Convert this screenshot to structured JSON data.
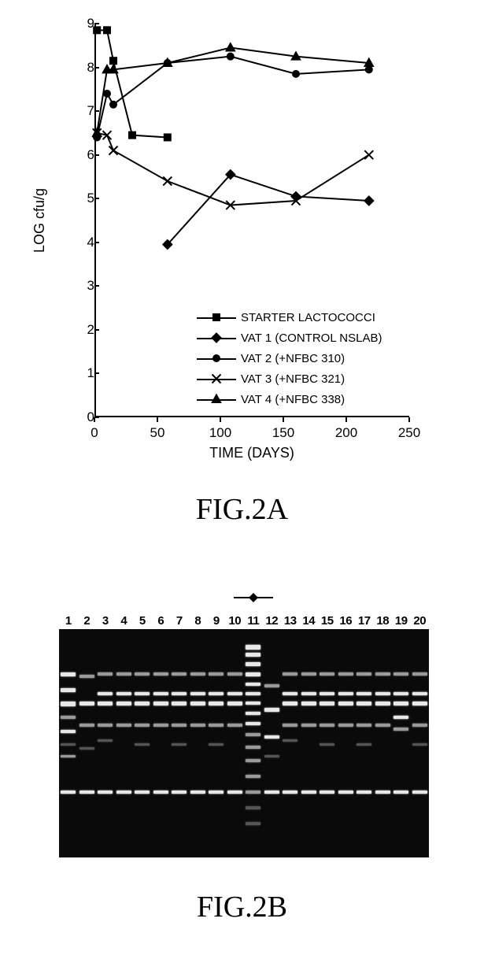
{
  "chart": {
    "type": "line",
    "xlabel": "TIME (DAYS)",
    "ylabel": "LOG cfu/g",
    "label_fontsize": 18,
    "tick_fontsize": 17,
    "xlim": [
      0,
      250
    ],
    "ylim": [
      0,
      9
    ],
    "xticks": [
      0,
      50,
      100,
      150,
      200,
      250
    ],
    "yticks": [
      0,
      1,
      2,
      3,
      4,
      5,
      6,
      7,
      8,
      9
    ],
    "background_color": "#ffffff",
    "axis_color": "#000000",
    "line_color": "#000000",
    "line_width": 2,
    "series": [
      {
        "label": "STARTER LACTOCOCCI",
        "marker": "square-filled",
        "marker_size": 10,
        "x": [
          2,
          10,
          15,
          30,
          58
        ],
        "y": [
          8.85,
          8.85,
          8.15,
          6.45,
          6.4
        ]
      },
      {
        "label": "VAT 1 (CONTROL NSLAB)",
        "marker": "diamond-filled",
        "marker_size": 11,
        "x": [
          58,
          108,
          160,
          218
        ],
        "y": [
          3.95,
          5.55,
          5.05,
          4.95
        ]
      },
      {
        "label": "VAT 2 (+NFBC 310)",
        "marker": "circle-filled",
        "marker_size": 10,
        "x": [
          2,
          10,
          15,
          58,
          108,
          160,
          218
        ],
        "y": [
          6.4,
          7.4,
          7.15,
          8.1,
          8.25,
          7.85,
          7.95
        ]
      },
      {
        "label": "VAT 3 (+NFBC 321)",
        "marker": "x",
        "marker_size": 11,
        "x": [
          2,
          10,
          15,
          58,
          108,
          160,
          218
        ],
        "y": [
          6.5,
          6.45,
          6.1,
          5.4,
          4.85,
          4.95,
          6.0
        ]
      },
      {
        "label": "VAT 4 (+NFBC 338)",
        "marker": "triangle-filled",
        "marker_size": 11,
        "x": [
          2,
          10,
          15,
          58,
          108,
          160,
          218
        ],
        "y": [
          6.5,
          7.95,
          7.95,
          8.1,
          8.45,
          8.25,
          8.1
        ]
      }
    ]
  },
  "caption_a": "FIG.2A",
  "caption_b": "FIG.2B",
  "caption_fontsize": 38,
  "gel": {
    "type": "gel-image",
    "background_color": "#0a0a0a",
    "band_color_bright": "#e8e8e8",
    "band_color_mid": "#9a9a9a",
    "band_color_dim": "#555555",
    "lane_count": 20,
    "lane_labels": [
      "1",
      "2",
      "3",
      "4",
      "5",
      "6",
      "7",
      "8",
      "9",
      "10",
      "11",
      "12",
      "13",
      "14",
      "15",
      "16",
      "17",
      "18",
      "19",
      "20"
    ],
    "marker_lane": 11,
    "marker_top_symbol": "diamond",
    "lanes": [
      {
        "n": 1,
        "bands": [
          {
            "y": 55,
            "h": 5,
            "b": "bright"
          },
          {
            "y": 75,
            "h": 5,
            "b": "bright"
          },
          {
            "y": 92,
            "h": 6,
            "b": "bright"
          },
          {
            "y": 110,
            "h": 4,
            "b": "mid"
          },
          {
            "y": 128,
            "h": 4,
            "b": "bright"
          },
          {
            "y": 145,
            "h": 3,
            "b": "dim"
          },
          {
            "y": 160,
            "h": 3,
            "b": "mid"
          },
          {
            "y": 205,
            "h": 4,
            "b": "bright"
          }
        ]
      },
      {
        "n": 2,
        "bands": [
          {
            "y": 58,
            "h": 4,
            "b": "mid"
          },
          {
            "y": 92,
            "h": 5,
            "b": "bright"
          },
          {
            "y": 120,
            "h": 4,
            "b": "mid"
          },
          {
            "y": 150,
            "h": 3,
            "b": "dim"
          },
          {
            "y": 205,
            "h": 4,
            "b": "bright"
          }
        ]
      },
      {
        "n": 3,
        "bands": [
          {
            "y": 55,
            "h": 4,
            "b": "mid"
          },
          {
            "y": 80,
            "h": 4,
            "b": "bright"
          },
          {
            "y": 92,
            "h": 5,
            "b": "bright"
          },
          {
            "y": 120,
            "h": 4,
            "b": "mid"
          },
          {
            "y": 140,
            "h": 3,
            "b": "dim"
          },
          {
            "y": 205,
            "h": 4,
            "b": "bright"
          }
        ]
      },
      {
        "n": 4,
        "bands": [
          {
            "y": 55,
            "h": 4,
            "b": "mid"
          },
          {
            "y": 80,
            "h": 4,
            "b": "bright"
          },
          {
            "y": 92,
            "h": 5,
            "b": "bright"
          },
          {
            "y": 120,
            "h": 4,
            "b": "mid"
          },
          {
            "y": 205,
            "h": 4,
            "b": "bright"
          }
        ]
      },
      {
        "n": 5,
        "bands": [
          {
            "y": 55,
            "h": 4,
            "b": "mid"
          },
          {
            "y": 80,
            "h": 4,
            "b": "bright"
          },
          {
            "y": 92,
            "h": 5,
            "b": "bright"
          },
          {
            "y": 120,
            "h": 4,
            "b": "mid"
          },
          {
            "y": 145,
            "h": 3,
            "b": "dim"
          },
          {
            "y": 205,
            "h": 4,
            "b": "bright"
          }
        ]
      },
      {
        "n": 6,
        "bands": [
          {
            "y": 55,
            "h": 4,
            "b": "mid"
          },
          {
            "y": 80,
            "h": 4,
            "b": "bright"
          },
          {
            "y": 92,
            "h": 5,
            "b": "bright"
          },
          {
            "y": 120,
            "h": 4,
            "b": "mid"
          },
          {
            "y": 205,
            "h": 4,
            "b": "bright"
          }
        ]
      },
      {
        "n": 7,
        "bands": [
          {
            "y": 55,
            "h": 4,
            "b": "mid"
          },
          {
            "y": 80,
            "h": 4,
            "b": "bright"
          },
          {
            "y": 92,
            "h": 5,
            "b": "bright"
          },
          {
            "y": 120,
            "h": 4,
            "b": "mid"
          },
          {
            "y": 145,
            "h": 3,
            "b": "dim"
          },
          {
            "y": 205,
            "h": 4,
            "b": "bright"
          }
        ]
      },
      {
        "n": 8,
        "bands": [
          {
            "y": 55,
            "h": 4,
            "b": "mid"
          },
          {
            "y": 80,
            "h": 4,
            "b": "bright"
          },
          {
            "y": 92,
            "h": 5,
            "b": "bright"
          },
          {
            "y": 120,
            "h": 4,
            "b": "mid"
          },
          {
            "y": 205,
            "h": 4,
            "b": "bright"
          }
        ]
      },
      {
        "n": 9,
        "bands": [
          {
            "y": 55,
            "h": 4,
            "b": "mid"
          },
          {
            "y": 80,
            "h": 4,
            "b": "bright"
          },
          {
            "y": 92,
            "h": 5,
            "b": "bright"
          },
          {
            "y": 120,
            "h": 4,
            "b": "mid"
          },
          {
            "y": 145,
            "h": 3,
            "b": "dim"
          },
          {
            "y": 205,
            "h": 4,
            "b": "bright"
          }
        ]
      },
      {
        "n": 10,
        "bands": [
          {
            "y": 55,
            "h": 4,
            "b": "mid"
          },
          {
            "y": 80,
            "h": 4,
            "b": "bright"
          },
          {
            "y": 92,
            "h": 5,
            "b": "bright"
          },
          {
            "y": 120,
            "h": 4,
            "b": "mid"
          },
          {
            "y": 205,
            "h": 4,
            "b": "bright"
          }
        ]
      },
      {
        "n": 11,
        "bands": [
          {
            "y": 20,
            "h": 6,
            "b": "bright"
          },
          {
            "y": 30,
            "h": 5,
            "b": "bright"
          },
          {
            "y": 42,
            "h": 5,
            "b": "bright"
          },
          {
            "y": 55,
            "h": 5,
            "b": "bright"
          },
          {
            "y": 68,
            "h": 4,
            "b": "bright"
          },
          {
            "y": 80,
            "h": 4,
            "b": "bright"
          },
          {
            "y": 92,
            "h": 4,
            "b": "bright"
          },
          {
            "y": 105,
            "h": 4,
            "b": "bright"
          },
          {
            "y": 118,
            "h": 4,
            "b": "bright"
          },
          {
            "y": 132,
            "h": 4,
            "b": "mid"
          },
          {
            "y": 148,
            "h": 4,
            "b": "mid"
          },
          {
            "y": 165,
            "h": 4,
            "b": "mid"
          },
          {
            "y": 185,
            "h": 4,
            "b": "mid"
          },
          {
            "y": 205,
            "h": 4,
            "b": "mid"
          },
          {
            "y": 225,
            "h": 4,
            "b": "dim"
          },
          {
            "y": 245,
            "h": 4,
            "b": "dim"
          }
        ]
      },
      {
        "n": 12,
        "bands": [
          {
            "y": 70,
            "h": 4,
            "b": "mid"
          },
          {
            "y": 100,
            "h": 5,
            "b": "bright"
          },
          {
            "y": 135,
            "h": 4,
            "b": "bright"
          },
          {
            "y": 160,
            "h": 3,
            "b": "dim"
          },
          {
            "y": 205,
            "h": 4,
            "b": "bright"
          }
        ]
      },
      {
        "n": 13,
        "bands": [
          {
            "y": 55,
            "h": 4,
            "b": "mid"
          },
          {
            "y": 80,
            "h": 4,
            "b": "bright"
          },
          {
            "y": 92,
            "h": 5,
            "b": "bright"
          },
          {
            "y": 120,
            "h": 4,
            "b": "mid"
          },
          {
            "y": 140,
            "h": 3,
            "b": "dim"
          },
          {
            "y": 205,
            "h": 4,
            "b": "bright"
          }
        ]
      },
      {
        "n": 14,
        "bands": [
          {
            "y": 55,
            "h": 4,
            "b": "mid"
          },
          {
            "y": 80,
            "h": 4,
            "b": "bright"
          },
          {
            "y": 92,
            "h": 5,
            "b": "bright"
          },
          {
            "y": 120,
            "h": 4,
            "b": "mid"
          },
          {
            "y": 205,
            "h": 4,
            "b": "bright"
          }
        ]
      },
      {
        "n": 15,
        "bands": [
          {
            "y": 55,
            "h": 4,
            "b": "mid"
          },
          {
            "y": 80,
            "h": 4,
            "b": "bright"
          },
          {
            "y": 92,
            "h": 5,
            "b": "bright"
          },
          {
            "y": 120,
            "h": 4,
            "b": "mid"
          },
          {
            "y": 145,
            "h": 3,
            "b": "dim"
          },
          {
            "y": 205,
            "h": 4,
            "b": "bright"
          }
        ]
      },
      {
        "n": 16,
        "bands": [
          {
            "y": 55,
            "h": 4,
            "b": "mid"
          },
          {
            "y": 80,
            "h": 4,
            "b": "bright"
          },
          {
            "y": 92,
            "h": 5,
            "b": "bright"
          },
          {
            "y": 120,
            "h": 4,
            "b": "mid"
          },
          {
            "y": 205,
            "h": 4,
            "b": "bright"
          }
        ]
      },
      {
        "n": 17,
        "bands": [
          {
            "y": 55,
            "h": 4,
            "b": "mid"
          },
          {
            "y": 80,
            "h": 4,
            "b": "bright"
          },
          {
            "y": 92,
            "h": 5,
            "b": "bright"
          },
          {
            "y": 120,
            "h": 4,
            "b": "mid"
          },
          {
            "y": 145,
            "h": 3,
            "b": "dim"
          },
          {
            "y": 205,
            "h": 4,
            "b": "bright"
          }
        ]
      },
      {
        "n": 18,
        "bands": [
          {
            "y": 55,
            "h": 4,
            "b": "mid"
          },
          {
            "y": 80,
            "h": 4,
            "b": "bright"
          },
          {
            "y": 92,
            "h": 5,
            "b": "bright"
          },
          {
            "y": 120,
            "h": 4,
            "b": "mid"
          },
          {
            "y": 205,
            "h": 4,
            "b": "bright"
          }
        ]
      },
      {
        "n": 19,
        "bands": [
          {
            "y": 55,
            "h": 4,
            "b": "mid"
          },
          {
            "y": 80,
            "h": 4,
            "b": "bright"
          },
          {
            "y": 92,
            "h": 5,
            "b": "bright"
          },
          {
            "y": 110,
            "h": 4,
            "b": "bright"
          },
          {
            "y": 125,
            "h": 4,
            "b": "mid"
          },
          {
            "y": 205,
            "h": 4,
            "b": "bright"
          }
        ]
      },
      {
        "n": 20,
        "bands": [
          {
            "y": 55,
            "h": 4,
            "b": "mid"
          },
          {
            "y": 80,
            "h": 4,
            "b": "bright"
          },
          {
            "y": 92,
            "h": 5,
            "b": "bright"
          },
          {
            "y": 120,
            "h": 4,
            "b": "mid"
          },
          {
            "y": 145,
            "h": 3,
            "b": "dim"
          },
          {
            "y": 205,
            "h": 4,
            "b": "bright"
          }
        ]
      }
    ]
  }
}
